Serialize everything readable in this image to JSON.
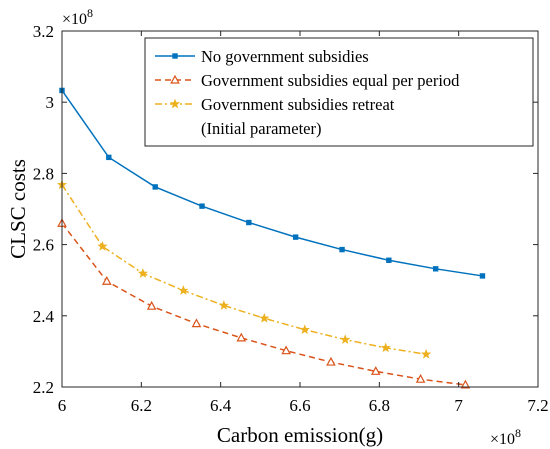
{
  "chart_data": {
    "type": "line",
    "title": "",
    "xlabel": "Carbon emission(g)",
    "ylabel": "CLSC costs",
    "x_multiplier_label": "×10",
    "x_multiplier_exp": "8",
    "y_multiplier_label": "×10",
    "y_multiplier_exp": "8",
    "xlim": [
      6.0,
      7.2
    ],
    "ylim": [
      2.2,
      3.2
    ],
    "x_ticks": [
      6,
      6.2,
      6.4,
      6.6,
      6.8,
      7,
      7.2
    ],
    "x_tick_labels": [
      "6",
      "6.2",
      "6.4",
      "6.6",
      "6.8",
      "7",
      "7.2"
    ],
    "y_ticks": [
      2.2,
      2.4,
      2.6,
      2.8,
      3.0,
      3.2
    ],
    "y_tick_labels": [
      "2.2",
      "2.4",
      "2.6",
      "2.8",
      "3",
      "3.2"
    ],
    "grid": false,
    "legend_position": "top-right",
    "series": [
      {
        "name": "No government subsidies",
        "color": "#0072BD",
        "line_style": "solid",
        "marker": "square",
        "x": [
          6.0,
          6.118,
          6.235,
          6.353,
          6.471,
          6.589,
          6.706,
          6.824,
          6.942,
          7.06
        ],
        "y": [
          3.033,
          2.845,
          2.762,
          2.708,
          2.662,
          2.621,
          2.586,
          2.556,
          2.532,
          2.512
        ]
      },
      {
        "name": "Government subsidies equal per period",
        "color": "#D95319",
        "line_style": "dashed",
        "marker": "triangle",
        "x": [
          6.0,
          6.113,
          6.226,
          6.339,
          6.452,
          6.565,
          6.678,
          6.791,
          6.904,
          7.017
        ],
        "y": [
          2.66,
          2.497,
          2.427,
          2.378,
          2.338,
          2.302,
          2.27,
          2.244,
          2.222,
          2.206
        ]
      },
      {
        "name": "Government subsidies retreat\n(Initial parameter)",
        "color": "#EDB120",
        "line_style": "dashdot",
        "marker": "star",
        "x": [
          6.0,
          6.102,
          6.204,
          6.306,
          6.408,
          6.51,
          6.612,
          6.714,
          6.816,
          6.918
        ],
        "y": [
          2.768,
          2.595,
          2.519,
          2.471,
          2.429,
          2.393,
          2.361,
          2.333,
          2.31,
          2.292
        ]
      }
    ]
  }
}
